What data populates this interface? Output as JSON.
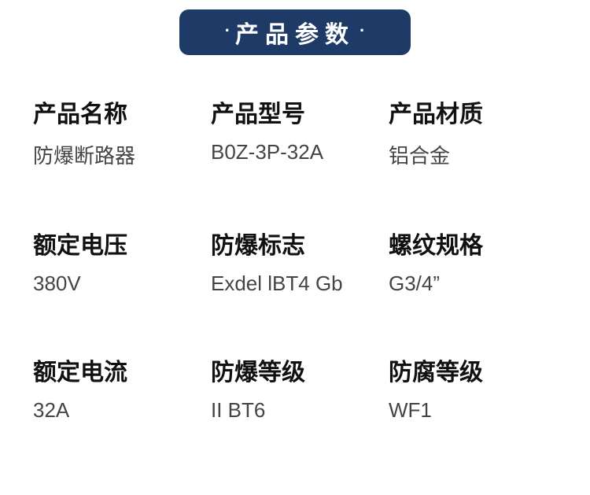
{
  "header": {
    "title": "产品参数"
  },
  "specs": [
    {
      "label": "产品名称",
      "value": "防爆断路器"
    },
    {
      "label": "产品型号",
      "value": "B0Z-3P-32A"
    },
    {
      "label": "产品材质",
      "value": "铝合金"
    },
    {
      "label": "额定电压",
      "value": "380V"
    },
    {
      "label": "防爆标志",
      "value": "Exdel lBT4 Gb"
    },
    {
      "label": "螺纹规格",
      "value": "G3/4”"
    },
    {
      "label": "额定电流",
      "value": "32A"
    },
    {
      "label": "防爆等级",
      "value": "II BT6"
    },
    {
      "label": "防腐等级",
      "value": "WF1"
    }
  ],
  "style": {
    "badge_bg": "#1d3b66",
    "badge_text_color": "#ffffff",
    "label_color": "#111111",
    "value_color": "#444444",
    "page_bg": "#ffffff",
    "label_fontsize": 30,
    "value_fontsize": 26,
    "badge_fontsize": 30,
    "columns": 3,
    "rows": 3
  }
}
